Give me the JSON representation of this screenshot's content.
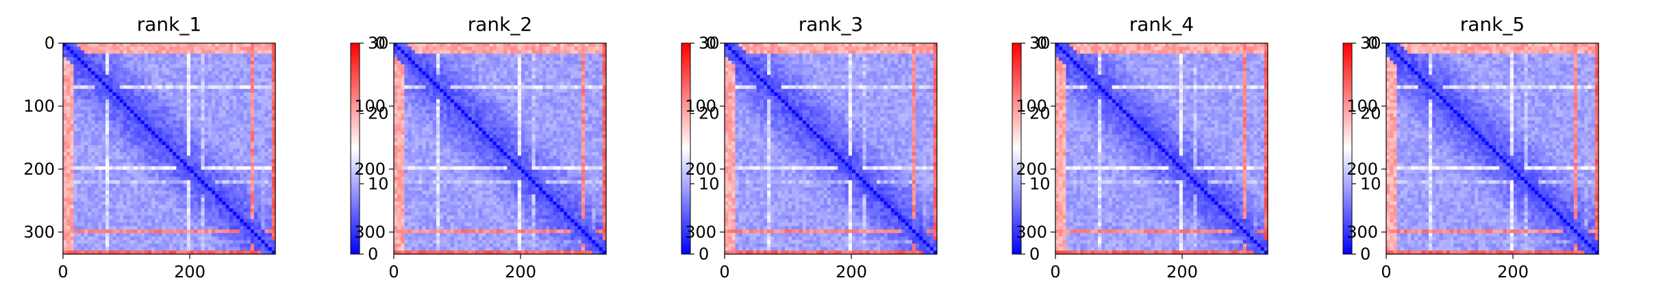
{
  "chart_data": {
    "type": "heatmap",
    "colormap": {
      "name": "bwr",
      "low": "#0000ff",
      "mid": "#ffffff",
      "high": "#ff0000"
    },
    "x_range": [
      0,
      335
    ],
    "y_range": [
      0,
      335
    ],
    "y_inverted": true,
    "x_ticks": [
      0,
      200
    ],
    "y_ticks": [
      0,
      100,
      200,
      300
    ],
    "colorbar": {
      "range": [
        0,
        30
      ],
      "ticks": [
        0,
        10,
        20,
        30
      ]
    },
    "panels": [
      {
        "title": "rank_1"
      },
      {
        "title": "rank_2"
      },
      {
        "title": "rank_3"
      },
      {
        "title": "rank_4"
      },
      {
        "title": "rank_5"
      }
    ]
  }
}
